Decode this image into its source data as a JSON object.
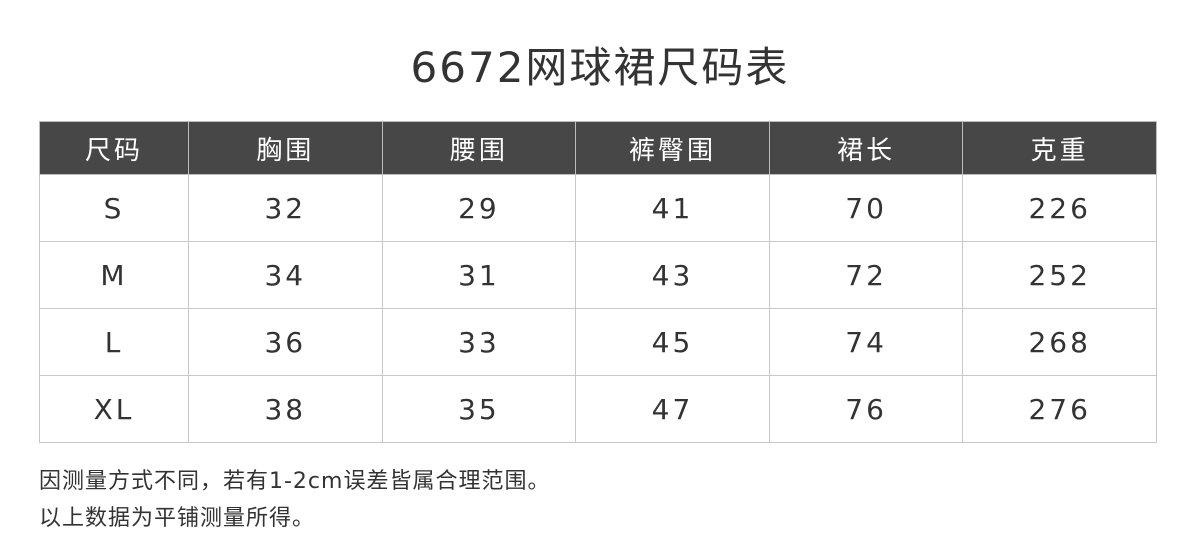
{
  "title": "6672网球裙尺码表",
  "table": {
    "headers": [
      "尺码",
      "胸围",
      "腰围",
      "裤臀围",
      "裙长",
      "克重"
    ],
    "rows": [
      [
        "S",
        "32",
        "29",
        "41",
        "70",
        "226"
      ],
      [
        "M",
        "34",
        "31",
        "43",
        "72",
        "252"
      ],
      [
        "L",
        "36",
        "33",
        "45",
        "74",
        "268"
      ],
      [
        "XL",
        "38",
        "35",
        "47",
        "76",
        "276"
      ]
    ]
  },
  "notes": [
    "因测量方式不同，若有1-2cm误差皆属合理范围。",
    "以上数据为平铺测量所得。"
  ],
  "colors": {
    "header_bg": "#474747",
    "header_text": "#ffffff",
    "text": "#333333",
    "border": "#c8c8c8"
  }
}
